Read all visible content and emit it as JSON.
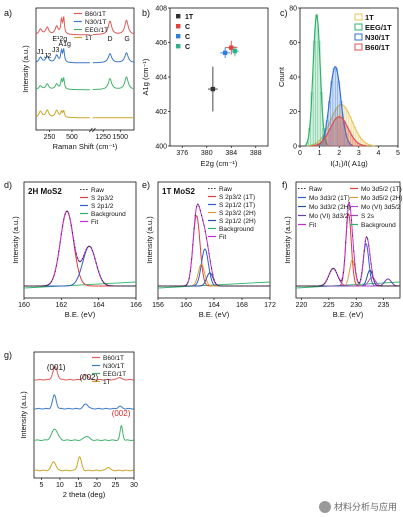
{
  "watermark": "材料分析与应用",
  "chart_data": [
    {
      "panel": "a)",
      "type": "line",
      "xlabel": "Raman Shift (cm⁻¹)",
      "ylabel": "Intensity (a.u.)",
      "xticks": [
        "250",
        "500",
        "1250",
        "1500"
      ],
      "annotations": [
        "J1",
        "J2",
        "J3",
        "E¹2g",
        "A1g",
        "D",
        "G"
      ],
      "series": [
        {
          "name": "B60/1T",
          "color": "#e05a5a",
          "peaks": [
            {
              "x": 150,
              "h": 0.3
            },
            {
              "x": 225,
              "h": 0.4
            },
            {
              "x": 330,
              "h": 0.45
            },
            {
              "x": 383,
              "h": 0.75
            },
            {
              "x": 408,
              "h": 0.9
            },
            {
              "x": 1350,
              "h": 0.75
            },
            {
              "x": 1590,
              "h": 0.8
            }
          ]
        },
        {
          "name": "N30/1T",
          "color": "#3a78c9",
          "peaks": [
            {
              "x": 150,
              "h": 0.3
            },
            {
              "x": 225,
              "h": 0.35
            },
            {
              "x": 330,
              "h": 0.4
            },
            {
              "x": 383,
              "h": 0.6
            },
            {
              "x": 408,
              "h": 0.7
            },
            {
              "x": 1350,
              "h": 0.5
            },
            {
              "x": 1590,
              "h": 0.55
            }
          ]
        },
        {
          "name": "EEG/1T",
          "color": "#43b36b",
          "peaks": [
            {
              "x": 150,
              "h": 0.2
            },
            {
              "x": 225,
              "h": 0.3
            },
            {
              "x": 330,
              "h": 0.3
            },
            {
              "x": 383,
              "h": 0.5
            },
            {
              "x": 408,
              "h": 0.6
            },
            {
              "x": 1350,
              "h": 0.6
            },
            {
              "x": 1590,
              "h": 0.7
            }
          ]
        },
        {
          "name": "1T",
          "color": "#c9a62a",
          "peaks": [
            {
              "x": 150,
              "h": 0.35
            },
            {
              "x": 225,
              "h": 0.4
            },
            {
              "x": 330,
              "h": 0.4
            },
            {
              "x": 383,
              "h": 0.3
            },
            {
              "x": 408,
              "h": 0.35
            }
          ]
        }
      ]
    },
    {
      "panel": "b)",
      "type": "scatter",
      "xlabel": "E2g (cm⁻¹)",
      "ylabel": "A1g (cm⁻¹)",
      "xlim": [
        374,
        390
      ],
      "ylim": [
        400,
        408
      ],
      "xticks": [
        "376",
        "380",
        "384",
        "388"
      ],
      "yticks": [
        "400",
        "402",
        "404",
        "406",
        "408"
      ],
      "legend": [
        "1T",
        "C",
        "C",
        "C"
      ],
      "points": [
        {
          "name": "1T",
          "color": "#333333",
          "x": 381.0,
          "y": 403.3,
          "xerr": 0.8,
          "yerr": 1.3
        },
        {
          "name": "C",
          "color": "#e04040",
          "x": 384.0,
          "y": 405.7,
          "xerr": 1.0,
          "yerr": 0.4
        },
        {
          "name": "C",
          "color": "#2f7fd8",
          "x": 383.0,
          "y": 405.4,
          "xerr": 0.8,
          "yerr": 0.3
        },
        {
          "name": "C",
          "color": "#2db38a",
          "x": 384.6,
          "y": 405.5,
          "xerr": 0.6,
          "yerr": 0.3
        }
      ]
    },
    {
      "panel": "c)",
      "type": "area",
      "xlabel": "I(J₁)/I( A1g)",
      "ylabel": "Count",
      "xlim": [
        0,
        5
      ],
      "ylim": [
        0,
        80
      ],
      "xticks": [
        "0",
        "1",
        "2",
        "3",
        "4",
        "5"
      ],
      "yticks": [
        "0",
        "20",
        "40",
        "60",
        "80"
      ],
      "series": [
        {
          "name": "1T",
          "color": "#e8c65a",
          "mu": 2.1,
          "sigma": 0.55,
          "peak": 24
        },
        {
          "name": "EEG/1T",
          "color": "#2fb36a",
          "mu": 0.85,
          "sigma": 0.18,
          "peak": 76
        },
        {
          "name": "N30/1T",
          "color": "#2f6fd8",
          "mu": 1.8,
          "sigma": 0.28,
          "peak": 46
        },
        {
          "name": "B60/1T",
          "color": "#e05050",
          "mu": 2.0,
          "sigma": 0.45,
          "peak": 17
        }
      ]
    },
    {
      "panel": "d)",
      "type": "line",
      "title": "2H MoS2",
      "xlabel": "B.E. (eV)",
      "ylabel": "Intensity (a.u.)",
      "xlim": [
        160,
        166
      ],
      "xticks": [
        "160",
        "162",
        "164",
        "166"
      ],
      "legend": [
        "Raw",
        "S 2p3/2",
        "S 2p1/2",
        "Background",
        "Fit"
      ],
      "series": [
        {
          "name": "S 2p3/2",
          "color": "#e03c3c",
          "peaks": [
            {
              "x": 162.3,
              "w": 0.35,
              "h": 0.85
            }
          ]
        },
        {
          "name": "S 2p1/2",
          "color": "#2f5fd0",
          "peaks": [
            {
              "x": 163.5,
              "w": 0.35,
              "h": 0.45
            }
          ]
        },
        {
          "name": "Fit",
          "color": "#c22fd6",
          "peaks": [
            {
              "x": 162.3,
              "w": 0.35,
              "h": 0.85
            },
            {
              "x": 163.5,
              "w": 0.35,
              "h": 0.45
            }
          ]
        }
      ]
    },
    {
      "panel": "e)",
      "type": "line",
      "title": "1T MoS2",
      "xlabel": "B.E. (eV)",
      "ylabel": "Intensity (a.u.)",
      "xlim": [
        156,
        172
      ],
      "xticks": [
        "156",
        "160",
        "164",
        "168",
        "172"
      ],
      "legend": [
        "Raw",
        "S 2p3/2 (1T)",
        "S 2p1/2 (1T)",
        "S 2p3/2 (2H)",
        "S 2p1/2 (2H)",
        "Background",
        "Fit"
      ],
      "series": [
        {
          "name": "S 2p3/2 (1T)",
          "color": "#e03c3c",
          "peaks": [
            {
              "x": 161.5,
              "w": 0.5,
              "h": 0.8
            }
          ]
        },
        {
          "name": "S 2p1/2 (1T)",
          "color": "#2f5fd0",
          "peaks": [
            {
              "x": 162.7,
              "w": 0.5,
              "h": 0.42
            }
          ]
        },
        {
          "name": "S 2p3/2 (2H)",
          "color": "#e39a3a",
          "peaks": [
            {
              "x": 162.2,
              "w": 0.45,
              "h": 0.25
            }
          ]
        },
        {
          "name": "S 2p1/2 (2H)",
          "color": "#2a4fa0",
          "peaks": [
            {
              "x": 163.4,
              "w": 0.45,
              "h": 0.15
            }
          ]
        },
        {
          "name": "Fit",
          "color": "#c22fd6",
          "peaks": [
            {
              "x": 161.5,
              "w": 0.5,
              "h": 0.8
            },
            {
              "x": 162.7,
              "w": 0.5,
              "h": 0.42
            },
            {
              "x": 162.2,
              "w": 0.45,
              "h": 0.25
            },
            {
              "x": 163.4,
              "w": 0.45,
              "h": 0.15
            }
          ]
        }
      ]
    },
    {
      "panel": "f)",
      "type": "line",
      "xlabel": "B.E. (eV)",
      "ylabel": "Intensity (a.u.)",
      "xlim": [
        219,
        238
      ],
      "xticks": [
        "220",
        "225",
        "230",
        "235"
      ],
      "legend": [
        "Raw",
        "Mo 3d5/2 (1T)",
        "Mo 3d3/2 (1T)",
        "Mo 3d5/2 (2H)",
        "Mo 3d3/2 (2H)",
        "Mo (VI) 3d5/2",
        "Mo (VI) 3d3/2",
        "S 2s",
        "Fit",
        "Background"
      ],
      "series": [
        {
          "name": "Mo 3d5/2 (1T)",
          "color": "#e03c3c",
          "peaks": [
            {
              "x": 228.6,
              "w": 0.5,
              "h": 0.82
            }
          ]
        },
        {
          "name": "Mo 3d3/2 (1T)",
          "color": "#2f5fd0",
          "peaks": [
            {
              "x": 231.8,
              "w": 0.5,
              "h": 0.48
            }
          ]
        },
        {
          "name": "Mo 3d5/2 (2H)",
          "color": "#e39a3a",
          "peaks": [
            {
              "x": 229.3,
              "w": 0.5,
              "h": 0.3
            }
          ]
        },
        {
          "name": "Mo 3d3/2 (2H)",
          "color": "#2a4fa0",
          "peaks": [
            {
              "x": 232.5,
              "w": 0.5,
              "h": 0.18
            }
          ]
        },
        {
          "name": "Mo (VI) 3d5/2",
          "color": "#b74bd6",
          "peaks": [
            {
              "x": 232.9,
              "w": 0.6,
              "h": 0.1
            }
          ]
        },
        {
          "name": "Mo (VI) 3d3/2",
          "color": "#6a3fb0",
          "peaks": [
            {
              "x": 235.8,
              "w": 0.6,
              "h": 0.08
            }
          ]
        },
        {
          "name": "S 2s",
          "color": "#a040c0",
          "peaks": [
            {
              "x": 225.8,
              "w": 0.8,
              "h": 0.2
            }
          ]
        },
        {
          "name": "Fit",
          "color": "#c22fd6",
          "peaks": [
            {
              "x": 228.6,
              "w": 0.5,
              "h": 0.82
            },
            {
              "x": 231.8,
              "w": 0.5,
              "h": 0.48
            },
            {
              "x": 229.3,
              "w": 0.5,
              "h": 0.3
            },
            {
              "x": 232.5,
              "w": 0.5,
              "h": 0.18
            },
            {
              "x": 225.8,
              "w": 0.8,
              "h": 0.2
            }
          ]
        }
      ]
    },
    {
      "panel": "g)",
      "type": "line",
      "xlabel": "2 theta (deg)",
      "ylabel": "Intensity (a.u.)",
      "xlim": [
        3,
        30
      ],
      "xticks": [
        "5",
        "10",
        "15",
        "20",
        "25",
        "30"
      ],
      "annotations": [
        {
          "text": "(001)",
          "color": "#111111"
        },
        {
          "text": "(002)",
          "color": "#111111"
        },
        {
          "text": "(002)",
          "color": "#d02a2a"
        }
      ],
      "series": [
        {
          "name": "B60/1T",
          "color": "#e05a5a",
          "peaks": [
            {
              "x": 8.7,
              "w": 0.6,
              "h": 0.8
            },
            {
              "x": 17.0,
              "w": 0.7,
              "h": 0.3
            },
            {
              "x": 26.0,
              "w": 0.5,
              "h": 0.15
            }
          ]
        },
        {
          "name": "N30/1T",
          "color": "#3a78c9",
          "peaks": [
            {
              "x": 8.5,
              "w": 0.5,
              "h": 0.85
            },
            {
              "x": 17.0,
              "w": 0.6,
              "h": 0.3
            },
            {
              "x": 26.2,
              "w": 0.5,
              "h": 0.15
            }
          ]
        },
        {
          "name": "EEG/1T",
          "color": "#43b36b",
          "peaks": [
            {
              "x": 8.6,
              "w": 0.8,
              "h": 0.7
            },
            {
              "x": 17.2,
              "w": 0.7,
              "h": 0.25
            },
            {
              "x": 26.6,
              "w": 0.35,
              "h": 0.9
            }
          ]
        },
        {
          "name": "1T",
          "color": "#c9a62a",
          "peaks": [
            {
              "x": 8.3,
              "w": 0.6,
              "h": 0.55
            },
            {
              "x": 15.3,
              "w": 0.5,
              "h": 0.85
            },
            {
              "x": 23.0,
              "w": 0.5,
              "h": 0.2
            }
          ]
        }
      ]
    }
  ]
}
